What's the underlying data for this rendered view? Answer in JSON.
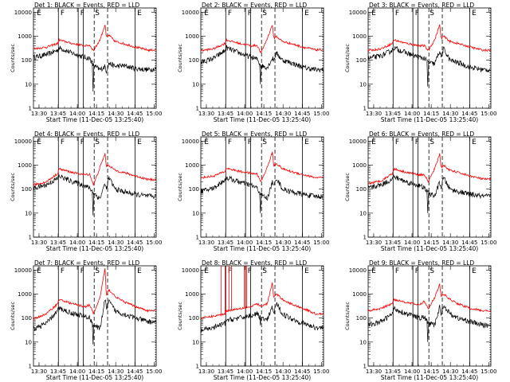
{
  "chart_data": {
    "type": "line",
    "panel_titles": [
      "Det 1: BLACK = Events, RED = LLD",
      "Det 2: BLACK = Events, RED = LLD",
      "Det 3: BLACK = Events, RED = LLD",
      "Det 4: BLACK = Events, RED = LLD",
      "Det 5: BLACK = Events, RED = LLD",
      "Det 6: BLACK = Events, RED = LLD",
      "Det 7: BLACK = Events, RED = LLD",
      "Det 8: BLACK = Events, RED = LLD",
      "Det 9: BLACK = Events, RED = LLD"
    ],
    "xlabel": "Start Time (11-Dec-05 13:25:40)",
    "ylabel": "Counts/sec",
    "x_ticks": [
      "13:30",
      "13:45",
      "14:00",
      "14:15",
      "14:30",
      "14:45",
      "15:00"
    ],
    "x_tick_minutes": [
      4.33,
      19.33,
      34.33,
      49.33,
      64.33,
      79.33,
      94.33
    ],
    "xlim": [
      0,
      96
    ],
    "y_ticks": [
      "1",
      "10",
      "100",
      "1000",
      "10000"
    ],
    "ylim": [
      1,
      15000
    ],
    "y_scale": "log",
    "solid_markers": [
      19.5,
      35,
      39,
      79.5
    ],
    "dashed_markers": [
      47.5,
      58
    ],
    "dotted_marker": 96,
    "marker_labels": [
      "E",
      "F",
      "F",
      "S",
      "E"
    ],
    "series_colors": {
      "events": "#000000",
      "lld": "#ff0000"
    },
    "series_x": [
      0,
      10,
      19,
      20,
      30,
      40,
      44,
      47,
      52,
      56,
      57,
      59,
      64,
      70,
      80,
      90,
      96
    ],
    "panels": [
      {
        "events": [
          130,
          170,
          260,
          330,
          200,
          130,
          120,
          60,
          40,
          55,
          35,
          75,
          55,
          60,
          45,
          40,
          45
        ],
        "lld": [
          300,
          350,
          500,
          700,
          500,
          400,
          420,
          250,
          700,
          3000,
          900,
          1100,
          600,
          500,
          350,
          260,
          270
        ],
        "dip": [
          46,
          5
        ]
      },
      {
        "events": [
          80,
          120,
          250,
          330,
          200,
          130,
          110,
          60,
          50,
          120,
          100,
          200,
          100,
          80,
          50,
          40,
          40
        ],
        "lld": [
          250,
          300,
          500,
          700,
          500,
          400,
          420,
          200,
          800,
          3000,
          800,
          1000,
          600,
          500,
          350,
          270,
          270
        ],
        "dip": [
          46,
          10
        ]
      },
      {
        "events": [
          120,
          150,
          260,
          330,
          200,
          130,
          120,
          80,
          70,
          250,
          130,
          300,
          100,
          80,
          50,
          40,
          40
        ],
        "lld": [
          250,
          300,
          500,
          700,
          500,
          400,
          400,
          250,
          700,
          3000,
          800,
          1000,
          600,
          500,
          350,
          260,
          260
        ],
        "dip": [
          46,
          8
        ]
      },
      {
        "events": [
          110,
          150,
          280,
          350,
          210,
          140,
          110,
          70,
          40,
          180,
          90,
          300,
          100,
          80,
          60,
          50,
          50
        ],
        "lld": [
          150,
          200,
          450,
          700,
          500,
          400,
          420,
          150,
          800,
          3000,
          900,
          1000,
          600,
          500,
          350,
          250,
          250
        ],
        "dip": [
          46,
          8
        ]
      },
      {
        "events": [
          80,
          110,
          250,
          300,
          200,
          140,
          110,
          60,
          40,
          200,
          120,
          300,
          100,
          80,
          60,
          50,
          50
        ],
        "lld": [
          300,
          350,
          550,
          750,
          550,
          450,
          420,
          200,
          800,
          3500,
          900,
          1200,
          700,
          550,
          400,
          300,
          300
        ],
        "dip": [
          46,
          10
        ]
      },
      {
        "events": [
          110,
          150,
          260,
          330,
          200,
          140,
          110,
          70,
          50,
          200,
          110,
          300,
          100,
          80,
          60,
          50,
          50
        ],
        "lld": [
          170,
          220,
          450,
          700,
          500,
          400,
          400,
          200,
          700,
          3000,
          800,
          1000,
          600,
          500,
          350,
          260,
          260
        ],
        "dip": [
          46,
          10
        ]
      },
      {
        "events": [
          35,
          60,
          200,
          260,
          160,
          120,
          100,
          50,
          35,
          600,
          250,
          500,
          200,
          150,
          100,
          70,
          70
        ],
        "lld": [
          90,
          150,
          400,
          600,
          400,
          300,
          350,
          150,
          700,
          12000,
          800,
          1500,
          800,
          500,
          300,
          200,
          200
        ],
        "dip": [
          46,
          8
        ]
      },
      {
        "events": [
          30,
          40,
          60,
          80,
          100,
          130,
          150,
          100,
          80,
          300,
          150,
          400,
          150,
          100,
          60,
          40,
          40
        ],
        "lld": [
          100,
          120,
          150,
          200,
          250,
          300,
          400,
          300,
          400,
          3000,
          700,
          1000,
          600,
          400,
          250,
          150,
          150
        ],
        "dip": [
          46,
          50
        ],
        "spikes": [
          [
            16,
            19
          ],
          [
            22,
            24
          ],
          [
            34,
            36
          ]
        ]
      },
      {
        "events": [
          50,
          70,
          150,
          250,
          150,
          100,
          110,
          60,
          50,
          300,
          150,
          350,
          150,
          100,
          70,
          50,
          50
        ],
        "lld": [
          200,
          250,
          400,
          600,
          450,
          350,
          500,
          250,
          700,
          2500,
          800,
          1000,
          600,
          400,
          250,
          200,
          200
        ],
        "dip": [
          46,
          10
        ]
      }
    ]
  }
}
